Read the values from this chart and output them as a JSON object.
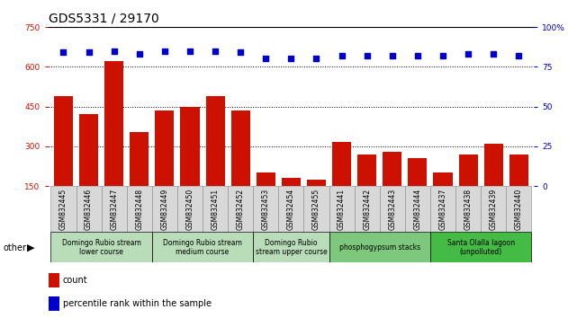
{
  "title": "GDS5331 / 29170",
  "samples": [
    "GSM832445",
    "GSM832446",
    "GSM832447",
    "GSM832448",
    "GSM832449",
    "GSM832450",
    "GSM832451",
    "GSM832452",
    "GSM832453",
    "GSM832454",
    "GSM832455",
    "GSM832441",
    "GSM832442",
    "GSM832443",
    "GSM832444",
    "GSM832437",
    "GSM832438",
    "GSM832439",
    "GSM832440"
  ],
  "counts": [
    490,
    420,
    620,
    355,
    435,
    450,
    490,
    435,
    200,
    180,
    175,
    315,
    270,
    280,
    255,
    200,
    270,
    310,
    270
  ],
  "percentiles": [
    84,
    84,
    85,
    83,
    85,
    85,
    85,
    84,
    80,
    80,
    80,
    82,
    82,
    82,
    82,
    82,
    83,
    83,
    82
  ],
  "groups": [
    {
      "label": "Domingo Rubio stream\nlower course",
      "start": 0,
      "end": 4,
      "color": "#b8ddb8"
    },
    {
      "label": "Domingo Rubio stream\nmedium course",
      "start": 4,
      "end": 8,
      "color": "#b8ddb8"
    },
    {
      "label": "Domingo Rubio\nstream upper course",
      "start": 8,
      "end": 11,
      "color": "#b8ddb8"
    },
    {
      "label": "phosphogypsum stacks",
      "start": 11,
      "end": 15,
      "color": "#7ec87e"
    },
    {
      "label": "Santa Olalla lagoon\n(unpolluted)",
      "start": 15,
      "end": 19,
      "color": "#44bb44"
    }
  ],
  "bar_color": "#cc1100",
  "dot_color": "#0000cc",
  "left_ylim": [
    150,
    750
  ],
  "left_yticks": [
    150,
    300,
    450,
    600,
    750
  ],
  "right_ylim": [
    0,
    100
  ],
  "right_yticks": [
    0,
    25,
    50,
    75,
    100
  ],
  "grid_values": [
    300,
    450,
    600
  ],
  "title_fontsize": 10,
  "tick_fontsize": 6.5,
  "bar_width": 0.75,
  "xtick_bg": "#d8d8d8"
}
